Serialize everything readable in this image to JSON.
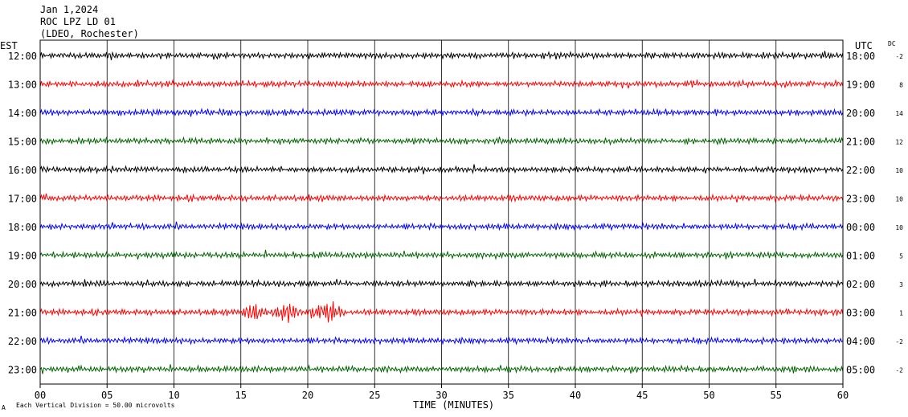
{
  "header": {
    "date": "Jan 1,2024",
    "station": "ROC LPZ LD 01",
    "network": "(LDEO, Rochester)"
  },
  "axis": {
    "left_zone": "EST",
    "right_zone": "UTC",
    "dc_label": "DC",
    "xlabel": "TIME (MINUTES)",
    "footnote": "Each Vertical Division =   50.00 microvolts",
    "footnote_mark": "A"
  },
  "chart_data": {
    "type": "line",
    "xlim": [
      0,
      60
    ],
    "x_ticks": [
      0,
      5,
      10,
      15,
      20,
      25,
      30,
      35,
      40,
      45,
      50,
      55,
      60
    ],
    "x_tick_labels": [
      "00",
      "05",
      "10",
      "15",
      "20",
      "25",
      "30",
      "35",
      "40",
      "45",
      "50",
      "55",
      "60"
    ],
    "rows": [
      {
        "left": "12:00",
        "right": "18:00",
        "dc": "-2",
        "color": "#000000"
      },
      {
        "left": "13:00",
        "right": "19:00",
        "dc": "8",
        "color": "#ff0000"
      },
      {
        "left": "14:00",
        "right": "20:00",
        "dc": "14",
        "color": "#0000ff"
      },
      {
        "left": "15:00",
        "right": "21:00",
        "dc": "12",
        "color": "#006400"
      },
      {
        "left": "16:00",
        "right": "22:00",
        "dc": "10",
        "color": "#000000"
      },
      {
        "left": "17:00",
        "right": "23:00",
        "dc": "10",
        "color": "#ff0000"
      },
      {
        "left": "18:00",
        "right": "00:00",
        "dc": "10",
        "color": "#0000ff"
      },
      {
        "left": "19:00",
        "right": "01:00",
        "dc": "5",
        "color": "#006400"
      },
      {
        "left": "20:00",
        "right": "02:00",
        "dc": "3",
        "color": "#000000"
      },
      {
        "left": "21:00",
        "right": "03:00",
        "dc": "1",
        "color": "#ff0000"
      },
      {
        "left": "22:00",
        "right": "04:00",
        "dc": "-2",
        "color": "#0000ff"
      },
      {
        "left": "23:00",
        "right": "05:00",
        "dc": "-2",
        "color": "#006400"
      }
    ],
    "events": [
      {
        "row": 9,
        "start_min": 15.0,
        "end_min": 17.0,
        "amplitude": 2.6
      },
      {
        "row": 9,
        "start_min": 17.2,
        "end_min": 19.6,
        "amplitude": 2.4
      },
      {
        "row": 9,
        "start_min": 19.8,
        "end_min": 22.8,
        "amplitude": 3.2
      }
    ]
  }
}
